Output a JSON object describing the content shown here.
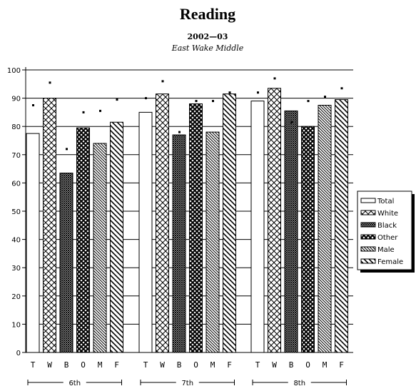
{
  "chart_data": {
    "type": "bar",
    "title": "Reading",
    "subtitle": "2002—03",
    "subtitle2": "East Wake Middle",
    "ylim": [
      0,
      100
    ],
    "yticks": [
      0,
      10,
      20,
      30,
      40,
      50,
      60,
      70,
      80,
      90,
      100
    ],
    "grid": true,
    "legend_position": "right",
    "groups": [
      "6th",
      "7th",
      "8th"
    ],
    "category_letters": [
      "T",
      "W",
      "B",
      "O",
      "M",
      "F"
    ],
    "series": [
      {
        "name": "Total",
        "pattern": "none",
        "values": [
          77.5,
          85,
          89
        ],
        "dots": [
          87.5,
          90,
          92
        ]
      },
      {
        "name": "White",
        "pattern": "crosshatch",
        "values": [
          90,
          91.5,
          93.5
        ],
        "dots": [
          95.5,
          96,
          97
        ]
      },
      {
        "name": "Black",
        "pattern": "dense",
        "values": [
          63.5,
          77,
          85.5
        ],
        "dots": [
          72,
          78,
          81.5
        ]
      },
      {
        "name": "Other",
        "pattern": "bigcross",
        "values": [
          79.5,
          88,
          80
        ],
        "dots": [
          85,
          89,
          89
        ]
      },
      {
        "name": "Male",
        "pattern": "diag",
        "values": [
          74,
          78,
          87.5
        ],
        "dots": [
          85.5,
          89,
          90.5
        ]
      },
      {
        "name": "Female",
        "pattern": "wide-diag",
        "values": [
          81.5,
          91.5,
          89.5
        ],
        "dots": [
          89.5,
          92,
          93.5
        ]
      }
    ]
  }
}
